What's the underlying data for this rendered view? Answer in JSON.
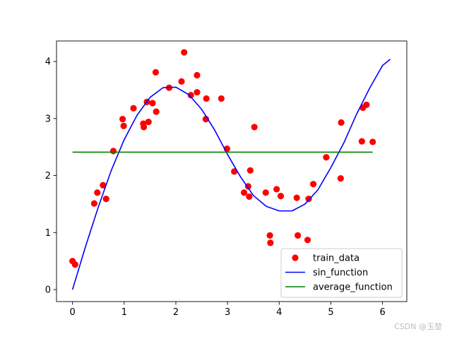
{
  "chart_data": {
    "type": "scatter",
    "title": "",
    "xlabel": "",
    "ylabel": "",
    "xlim": [
      -0.31,
      6.47
    ],
    "ylim": [
      -0.21,
      4.36
    ],
    "xticks": [
      0,
      1,
      2,
      3,
      4,
      5,
      6
    ],
    "yticks": [
      0,
      1,
      2,
      3,
      4
    ],
    "grid": false,
    "legend_position": "lower right",
    "series": [
      {
        "name": "train_data",
        "kind": "scatter",
        "color": "#ff0000",
        "points": [
          [
            0.0,
            0.5
          ],
          [
            0.05,
            0.44
          ],
          [
            0.42,
            1.51
          ],
          [
            0.48,
            1.7
          ],
          [
            0.59,
            1.83
          ],
          [
            0.65,
            1.59
          ],
          [
            0.79,
            2.43
          ],
          [
            0.97,
            2.99
          ],
          [
            0.99,
            2.87
          ],
          [
            1.18,
            3.18
          ],
          [
            1.37,
            2.91
          ],
          [
            1.38,
            2.85
          ],
          [
            1.44,
            3.29
          ],
          [
            1.47,
            2.94
          ],
          [
            1.55,
            3.27
          ],
          [
            1.61,
            3.81
          ],
          [
            1.62,
            3.12
          ],
          [
            1.87,
            3.54
          ],
          [
            2.11,
            3.65
          ],
          [
            2.16,
            4.16
          ],
          [
            2.29,
            3.41
          ],
          [
            2.41,
            3.76
          ],
          [
            2.41,
            3.46
          ],
          [
            2.58,
            2.99
          ],
          [
            2.59,
            3.35
          ],
          [
            2.88,
            3.35
          ],
          [
            2.99,
            2.47
          ],
          [
            3.13,
            2.07
          ],
          [
            3.32,
            1.7
          ],
          [
            3.4,
            1.81
          ],
          [
            3.42,
            1.63
          ],
          [
            3.44,
            2.09
          ],
          [
            3.52,
            2.85
          ],
          [
            3.74,
            1.7
          ],
          [
            3.82,
            0.95
          ],
          [
            3.83,
            0.82
          ],
          [
            3.95,
            1.76
          ],
          [
            4.03,
            1.64
          ],
          [
            4.34,
            1.61
          ],
          [
            4.36,
            0.95
          ],
          [
            4.55,
            0.87
          ],
          [
            4.57,
            1.59
          ],
          [
            4.66,
            1.85
          ],
          [
            4.91,
            2.32
          ],
          [
            5.19,
            1.95
          ],
          [
            5.2,
            2.93
          ],
          [
            5.6,
            2.6
          ],
          [
            5.62,
            3.19
          ],
          [
            5.69,
            3.24
          ],
          [
            5.81,
            2.59
          ]
        ]
      },
      {
        "name": "sin_function",
        "kind": "line",
        "color": "#0000ff",
        "x": [
          0.0,
          0.25,
          0.5,
          0.75,
          1.0,
          1.25,
          1.5,
          1.75,
          2.0,
          2.25,
          2.5,
          2.75,
          3.0,
          3.25,
          3.5,
          3.75,
          4.0,
          4.25,
          4.5,
          4.75,
          5.0,
          5.25,
          5.5,
          5.75,
          6.0,
          6.15
        ],
        "y": [
          0.0,
          0.75,
          1.45,
          2.09,
          2.63,
          3.06,
          3.37,
          3.54,
          3.55,
          3.42,
          3.16,
          2.8,
          2.37,
          1.98,
          1.65,
          1.46,
          1.38,
          1.38,
          1.5,
          1.75,
          2.14,
          2.57,
          3.08,
          3.53,
          3.93,
          4.04
        ]
      },
      {
        "name": "average_function",
        "kind": "line",
        "color": "#008000",
        "x": [
          0.0,
          5.81
        ],
        "y": [
          2.41,
          2.41
        ]
      }
    ]
  },
  "watermark": "CSDN @玉堃"
}
